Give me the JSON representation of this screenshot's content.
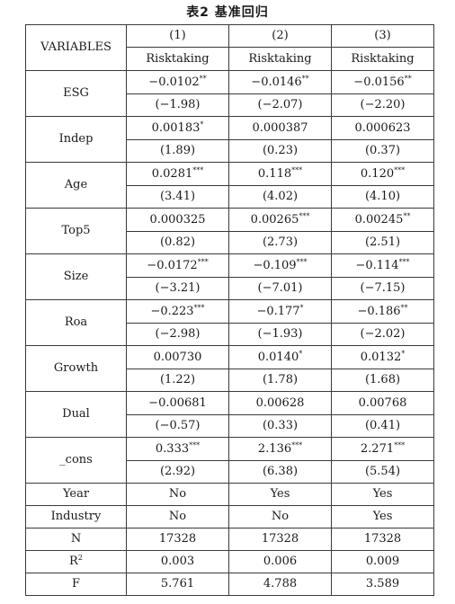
{
  "caption": "表2 基准回归",
  "header": {
    "variables_label": "VARIABLES",
    "columns": [
      "(1)",
      "(2)",
      "(3)"
    ],
    "dependent": [
      "Risktaking",
      "Risktaking",
      "Risktaking"
    ]
  },
  "rows": [
    {
      "name": "ESG",
      "coef": [
        "−0.0102",
        "−0.0146",
        "−0.0156"
      ],
      "stars": [
        "**",
        "**",
        "**"
      ],
      "t": [
        "(−1.98)",
        "(−2.07)",
        "(−2.20)"
      ]
    },
    {
      "name": "Indep",
      "coef": [
        "0.00183",
        "0.000387",
        "0.000623"
      ],
      "stars": [
        "*",
        "",
        ""
      ],
      "t": [
        "(1.89)",
        "(0.23)",
        "(0.37)"
      ]
    },
    {
      "name": "Age",
      "coef": [
        "0.0281",
        "0.118",
        "0.120"
      ],
      "stars": [
        "***",
        "***",
        "***"
      ],
      "t": [
        "(3.41)",
        "(4.02)",
        "(4.10)"
      ]
    },
    {
      "name": "Top5",
      "coef": [
        "0.000325",
        "0.00265",
        "0.00245"
      ],
      "stars": [
        "",
        "***",
        "**"
      ],
      "t": [
        "(0.82)",
        "(2.73)",
        "(2.51)"
      ]
    },
    {
      "name": "Size",
      "coef": [
        "−0.0172",
        "−0.109",
        "−0.114"
      ],
      "stars": [
        "***",
        "***",
        "***"
      ],
      "t": [
        "(−3.21)",
        "(−7.01)",
        "(−7.15)"
      ]
    },
    {
      "name": "Roa",
      "coef": [
        "−0.223",
        "−0.177",
        "−0.186"
      ],
      "stars": [
        "***",
        "*",
        "**"
      ],
      "t": [
        "(−2.98)",
        "(−1.93)",
        "(−2.02)"
      ]
    },
    {
      "name": "Growth",
      "coef": [
        "0.00730",
        "0.0140",
        "0.0132"
      ],
      "stars": [
        "",
        "*",
        "*"
      ],
      "t": [
        "(1.22)",
        "(1.78)",
        "(1.68)"
      ]
    },
    {
      "name": "Dual",
      "coef": [
        "−0.00681",
        "0.00628",
        "0.00768"
      ],
      "stars": [
        "",
        "",
        ""
      ],
      "t": [
        "(−0.57)",
        "(0.33)",
        "(0.41)"
      ]
    },
    {
      "name": "_cons",
      "coef": [
        "0.333",
        "2.136",
        "2.271"
      ],
      "stars": [
        "***",
        "***",
        "***"
      ],
      "t": [
        "(2.92)",
        "(6.38)",
        "(5.54)"
      ]
    }
  ],
  "stats": [
    {
      "name": "Year",
      "values": [
        "No",
        "Yes",
        "Yes"
      ]
    },
    {
      "name": "Industry",
      "values": [
        "No",
        "No",
        "Yes"
      ]
    },
    {
      "name": "N",
      "values": [
        "17328",
        "17328",
        "17328"
      ]
    },
    {
      "name": "R",
      "sup": "2",
      "values": [
        "0.003",
        "0.006",
        "0.009"
      ]
    },
    {
      "name": "F",
      "values": [
        "5.761",
        "4.788",
        "3.589"
      ]
    }
  ]
}
